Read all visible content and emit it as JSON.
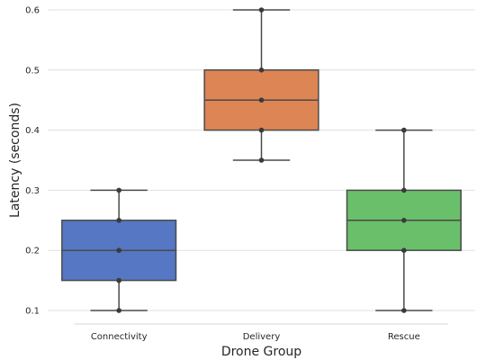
{
  "chart_data": {
    "type": "box",
    "title": "",
    "xlabel": "Drone Group",
    "ylabel": "Latency (seconds)",
    "ylim": [
      0.1,
      0.6
    ],
    "yticks": [
      "0.1",
      "0.2",
      "0.3",
      "0.4",
      "0.5",
      "0.6"
    ],
    "grid": "horizontal",
    "categories": [
      "Connectivity",
      "Delivery",
      "Rescue"
    ],
    "boxes": [
      {
        "category": "Connectivity",
        "color": "#5577c4",
        "min": 0.1,
        "q1": 0.15,
        "median": 0.2,
        "q3": 0.25,
        "max": 0.3,
        "points": [
          0.1,
          0.15,
          0.2,
          0.25,
          0.3
        ]
      },
      {
        "category": "Delivery",
        "color": "#dd8555",
        "min": 0.35,
        "q1": 0.4,
        "median": 0.45,
        "q3": 0.5,
        "max": 0.6,
        "points": [
          0.35,
          0.4,
          0.45,
          0.5,
          0.6
        ]
      },
      {
        "category": "Rescue",
        "color": "#6abf6a",
        "min": 0.1,
        "q1": 0.2,
        "median": 0.25,
        "q3": 0.3,
        "max": 0.4,
        "points": [
          0.1,
          0.2,
          0.25,
          0.3,
          0.4
        ]
      }
    ]
  }
}
